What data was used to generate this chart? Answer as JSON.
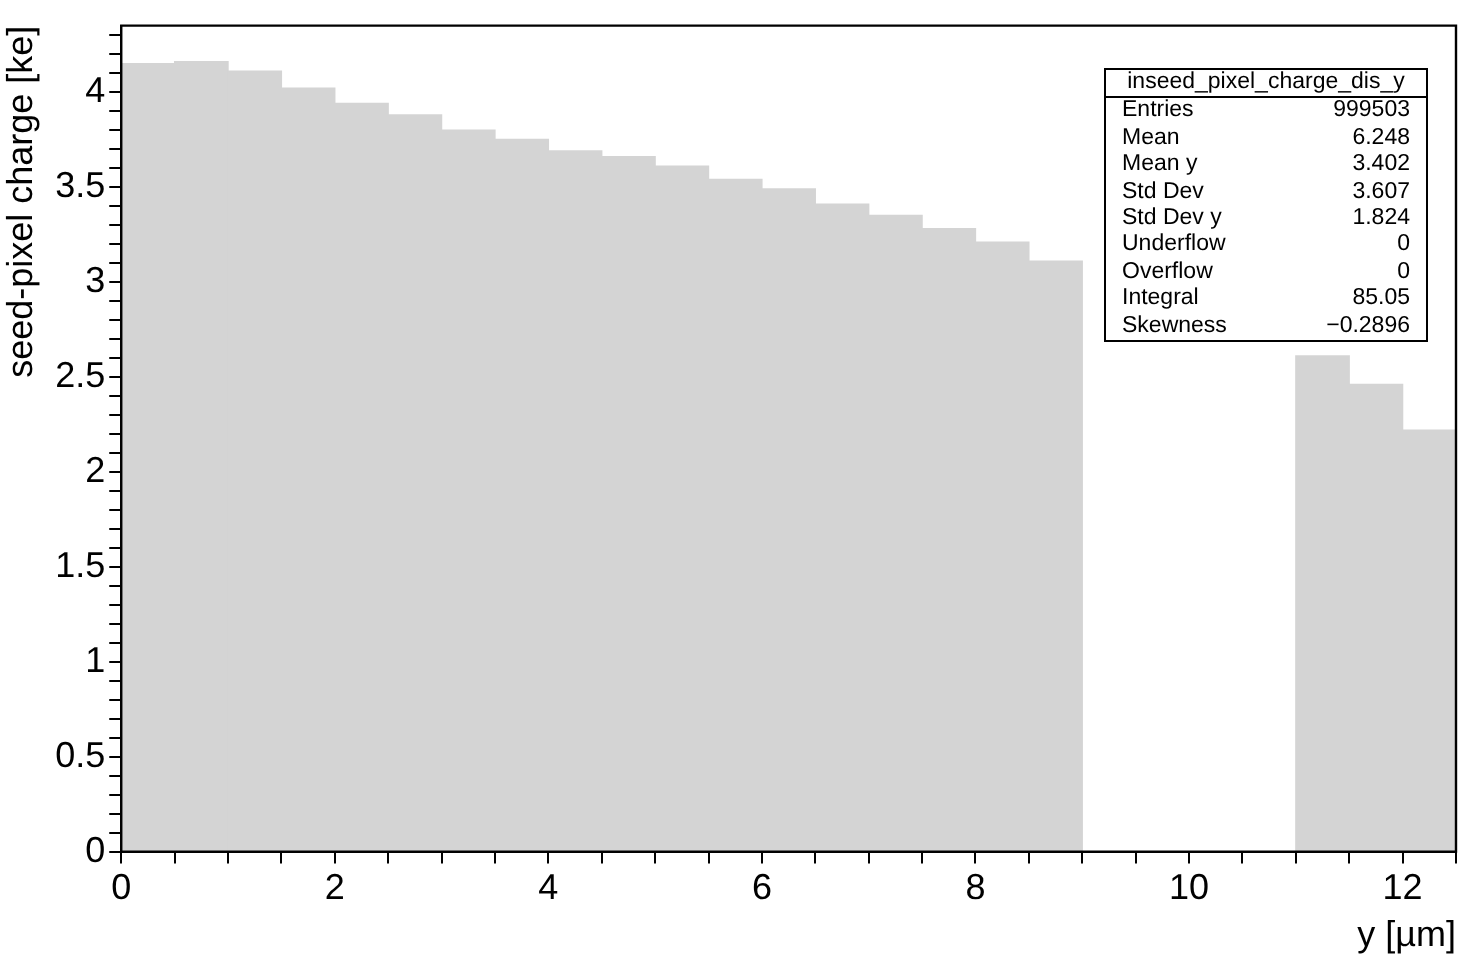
{
  "chart_data": {
    "type": "histogram",
    "xlabel": "y [µm]",
    "ylabel": "seed-pixel charge [ke]",
    "bins": [
      0,
      0.5,
      1,
      1.5,
      2,
      2.5,
      3,
      3.5,
      4,
      4.5,
      5,
      5.5,
      6,
      6.5,
      7,
      7.5,
      8,
      8.5,
      9,
      9.5,
      10,
      10.5,
      11,
      11.5,
      12,
      12.5
    ],
    "values": [
      4.15,
      4.16,
      4.11,
      4.02,
      3.94,
      3.88,
      3.8,
      3.75,
      3.69,
      3.66,
      3.61,
      3.54,
      3.49,
      3.41,
      3.35,
      3.28,
      3.21,
      3.11,
      null,
      null,
      null,
      null,
      2.61,
      2.46,
      2.22
    ],
    "color": "#d4d4d4",
    "xlim": [
      0,
      12.5
    ],
    "xticks": [
      0,
      {
        "value": 0.5,
        "label": null
      },
      {
        "value": 1,
        "label": null
      },
      {
        "value": 1.5,
        "label": null
      },
      2,
      {
        "value": 2.5,
        "label": null
      },
      {
        "value": 3,
        "label": null
      },
      {
        "value": 3.5,
        "label": null
      },
      4,
      {
        "value": 4.5,
        "label": null
      },
      {
        "value": 5,
        "label": null
      },
      {
        "value": 5.5,
        "label": null
      },
      6,
      {
        "value": 6.5,
        "label": null
      },
      {
        "value": 7,
        "label": null
      },
      {
        "value": 7.5,
        "label": null
      },
      8,
      {
        "value": 8.5,
        "label": null
      },
      {
        "value": 9,
        "label": null
      },
      {
        "value": 9.5,
        "label": null
      },
      10,
      {
        "value": 10.5,
        "label": null
      },
      {
        "value": 11,
        "label": null
      },
      {
        "value": 11.5,
        "label": null
      },
      12,
      {
        "value": 12.5,
        "label": null
      }
    ],
    "ylim": [
      0,
      4.35
    ],
    "yticks": [
      0,
      {
        "value": 0.1,
        "label": null
      },
      {
        "value": 0.2,
        "label": null
      },
      {
        "value": 0.3,
        "label": null
      },
      {
        "value": 0.4,
        "label": null
      },
      0.5,
      {
        "value": 0.6,
        "label": null
      },
      {
        "value": 0.7,
        "label": null
      },
      {
        "value": 0.8,
        "label": null
      },
      {
        "value": 0.9,
        "label": null
      },
      1,
      {
        "value": 1.1,
        "label": null
      },
      {
        "value": 1.2,
        "label": null
      },
      {
        "value": 1.3,
        "label": null
      },
      {
        "value": 1.4,
        "label": null
      },
      1.5,
      {
        "value": 1.6,
        "label": null
      },
      {
        "value": 1.7,
        "label": null
      },
      {
        "value": 1.8,
        "label": null
      },
      {
        "value": 1.9,
        "label": null
      },
      2,
      {
        "value": 2.1,
        "label": null
      },
      {
        "value": 2.2,
        "label": null
      },
      {
        "value": 2.3,
        "label": null
      },
      {
        "value": 2.4,
        "label": null
      },
      2.5,
      {
        "value": 2.6,
        "label": null
      },
      {
        "value": 2.7,
        "label": null
      },
      {
        "value": 2.8,
        "label": null
      },
      {
        "value": 2.9,
        "label": null
      },
      3,
      {
        "value": 3.1,
        "label": null
      },
      {
        "value": 3.2,
        "label": null
      },
      {
        "value": 3.3,
        "label": null
      },
      {
        "value": 3.4,
        "label": null
      },
      3.5,
      {
        "value": 3.6,
        "label": null
      },
      {
        "value": 3.7,
        "label": null
      },
      {
        "value": 3.8,
        "label": null
      },
      {
        "value": 3.9,
        "label": null
      },
      4,
      {
        "value": 4.1,
        "label": null
      },
      {
        "value": 4.2,
        "label": null
      },
      {
        "value": 4.3,
        "label": null
      }
    ],
    "grid": false,
    "legend": false,
    "annotations": [
      "inseed_pixel_charge_dis_y",
      "Entries 999503",
      "Mean 6.248",
      "Mean y 3.402",
      "Std Dev 3.607",
      "Std Dev y 1.824",
      "Underflow 0",
      "Overflow 0",
      "Integral 85.05",
      "Skewness −0.2896"
    ]
  }
}
